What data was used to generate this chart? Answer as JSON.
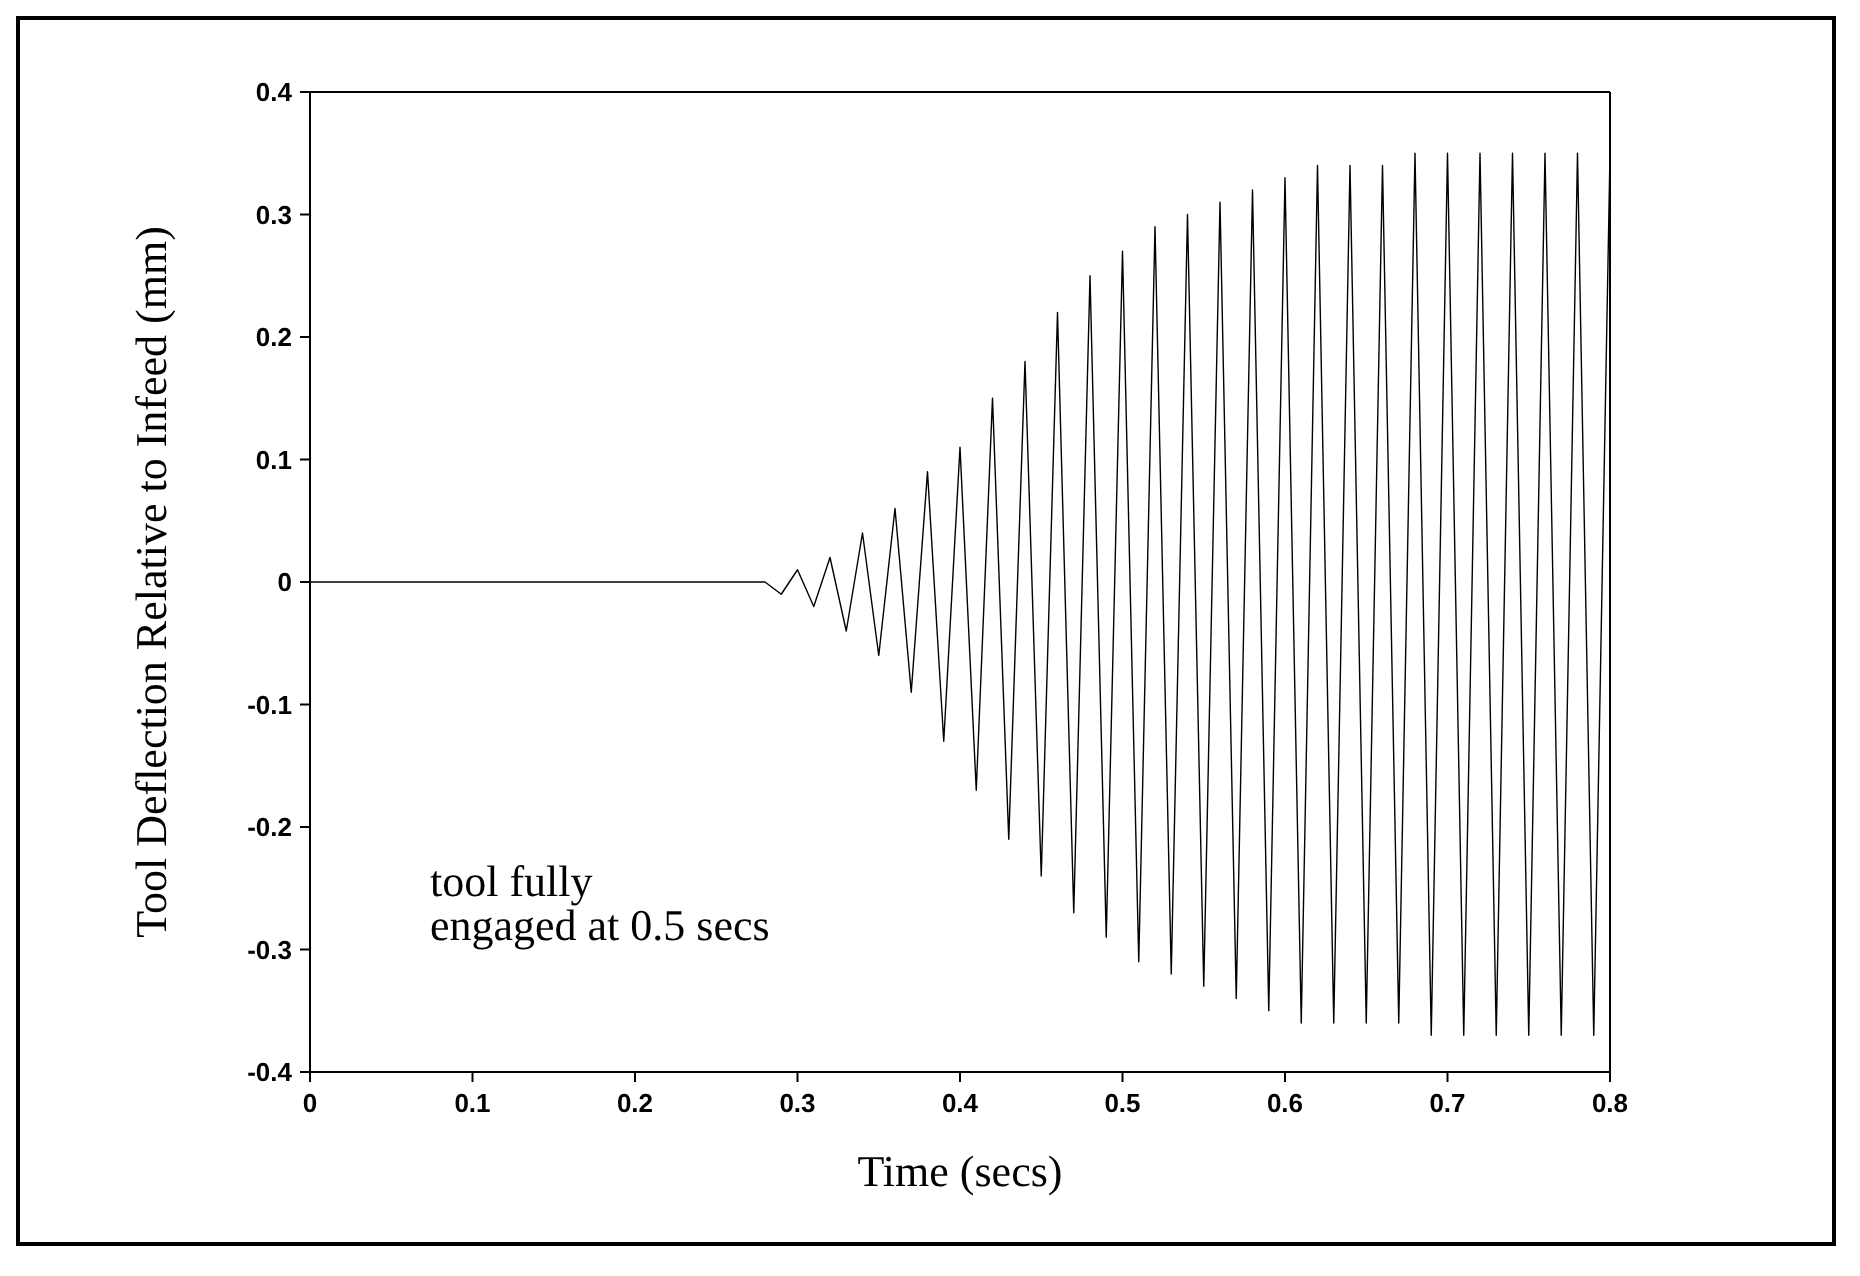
{
  "chart_data": {
    "type": "line",
    "xlabel": "Time (secs)",
    "ylabel": "Tool Deflection Relative to Infeed (mm)",
    "annotations": [
      "tool fully\nengaged at 0.5 secs"
    ],
    "x": [
      0,
      0.1,
      0.2,
      0.28,
      0.29,
      0.3,
      0.31,
      0.32,
      0.33,
      0.34,
      0.35,
      0.36,
      0.37,
      0.38,
      0.39,
      0.4,
      0.41,
      0.42,
      0.43,
      0.44,
      0.45,
      0.46,
      0.47,
      0.48,
      0.49,
      0.5,
      0.51,
      0.52,
      0.53,
      0.54,
      0.55,
      0.56,
      0.57,
      0.58,
      0.59,
      0.6,
      0.61,
      0.62,
      0.63,
      0.64,
      0.65,
      0.66,
      0.67,
      0.68,
      0.69,
      0.7,
      0.71,
      0.72,
      0.73,
      0.74,
      0.75,
      0.76,
      0.77,
      0.78,
      0.79,
      0.8
    ],
    "series": [
      {
        "color": "#000000",
        "values": [
          0,
          0,
          0,
          0,
          -0.01,
          0.01,
          -0.02,
          0.02,
          -0.04,
          0.04,
          -0.06,
          0.06,
          -0.09,
          0.09,
          -0.13,
          0.11,
          -0.17,
          0.15,
          -0.21,
          0.18,
          -0.24,
          0.22,
          -0.27,
          0.25,
          -0.29,
          0.27,
          -0.31,
          0.29,
          -0.32,
          0.3,
          -0.33,
          0.31,
          -0.34,
          0.32,
          -0.35,
          0.33,
          -0.36,
          0.34,
          -0.36,
          0.34,
          -0.36,
          0.34,
          -0.36,
          0.35,
          -0.37,
          0.35,
          -0.37,
          0.35,
          -0.37,
          0.35,
          -0.37,
          0.35,
          -0.37,
          0.35,
          -0.37,
          0.35
        ]
      }
    ],
    "xlim": [
      0,
      0.8
    ],
    "xticks": [
      0,
      0.1,
      0.2,
      0.3,
      0.4,
      0.5,
      0.6,
      0.7,
      0.8
    ],
    "ylim": [
      -0.4,
      0.4
    ],
    "yticks": [
      -0.4,
      -0.3,
      -0.2,
      -0.1,
      0,
      0.1,
      0.2,
      0.3,
      0.4
    ],
    "grid": false,
    "legend": false,
    "marker": "none",
    "line_style": "solid"
  }
}
